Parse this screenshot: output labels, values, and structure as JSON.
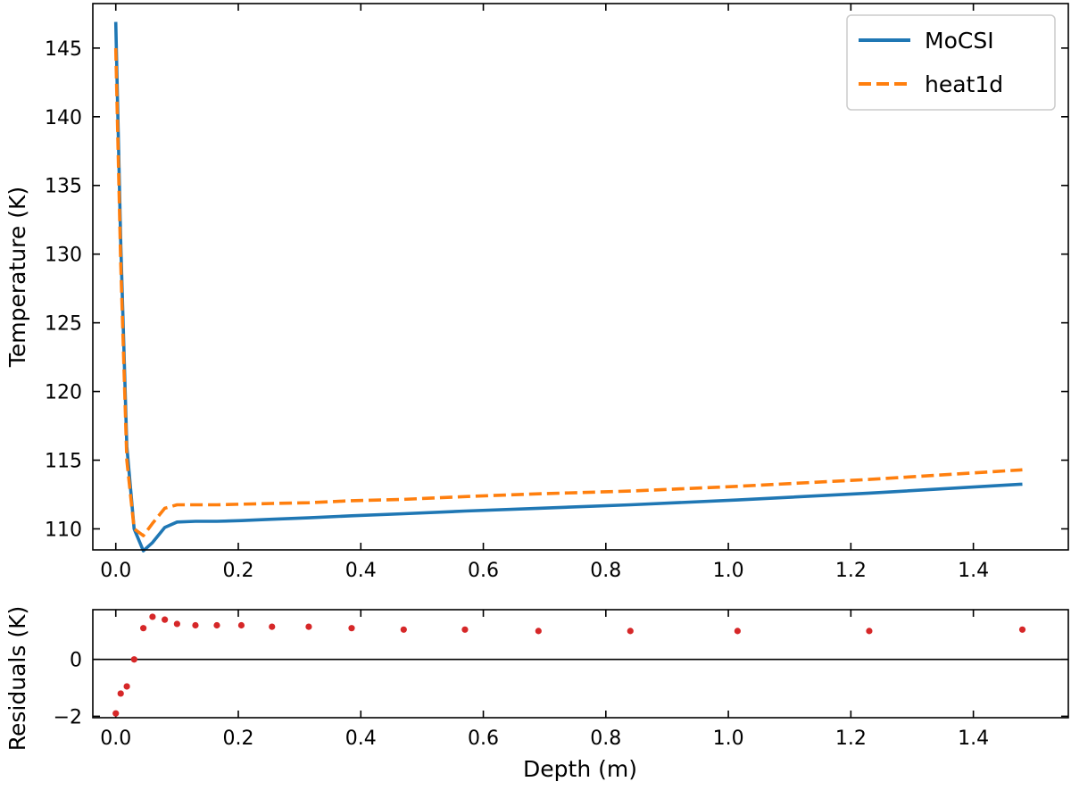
{
  "chart_data": [
    {
      "panel": "top",
      "type": "line",
      "xlabel": "",
      "ylabel": "Temperature (K)",
      "xlim": [
        -0.0375,
        1.555
      ],
      "ylim": [
        108.47,
        148.24
      ],
      "xticks": [
        0.0,
        0.2,
        0.4,
        0.6,
        0.8,
        1.0,
        1.2,
        1.4
      ],
      "xtick_labels": [
        "0.0",
        "0.2",
        "0.4",
        "0.6",
        "0.8",
        "1.0",
        "1.2",
        "1.4"
      ],
      "yticks": [
        110,
        115,
        120,
        125,
        130,
        135,
        140,
        145
      ],
      "ytick_labels": [
        "110",
        "115",
        "120",
        "125",
        "130",
        "135",
        "140",
        "145"
      ],
      "grid": false,
      "legend_position": "top-right",
      "series": [
        {
          "name": "MoCSI",
          "color": "#1f77b4",
          "dash": "solid",
          "x": [
            0.0,
            0.008,
            0.018,
            0.03,
            0.045,
            0.06,
            0.08,
            0.1,
            0.13,
            0.165,
            0.205,
            0.255,
            0.315,
            0.385,
            0.47,
            0.57,
            0.69,
            0.84,
            1.015,
            1.23,
            1.48
          ],
          "y": [
            146.9,
            131.0,
            116.0,
            110.0,
            108.4,
            109.0,
            110.1,
            110.5,
            110.55,
            110.55,
            110.6,
            110.7,
            110.8,
            110.95,
            111.1,
            111.3,
            111.5,
            111.75,
            112.1,
            112.6,
            113.25
          ]
        },
        {
          "name": "heat1d",
          "color": "#ff7f0e",
          "dash": "dashed",
          "x": [
            0.0,
            0.008,
            0.018,
            0.03,
            0.045,
            0.06,
            0.08,
            0.1,
            0.13,
            0.165,
            0.205,
            0.255,
            0.315,
            0.385,
            0.47,
            0.57,
            0.69,
            0.84,
            1.015,
            1.23,
            1.48
          ],
          "y": [
            145.0,
            129.5,
            115.0,
            110.0,
            109.5,
            110.4,
            111.5,
            111.75,
            111.75,
            111.75,
            111.8,
            111.85,
            111.9,
            112.05,
            112.15,
            112.35,
            112.55,
            112.75,
            113.1,
            113.6,
            114.3
          ]
        }
      ]
    },
    {
      "panel": "bottom",
      "type": "scatter",
      "xlabel": "Depth (m)",
      "ylabel": "Residuals (K)",
      "xlim": [
        -0.0375,
        1.555
      ],
      "ylim": [
        -2.05,
        1.75
      ],
      "xticks": [
        0.0,
        0.2,
        0.4,
        0.6,
        0.8,
        1.0,
        1.2,
        1.4
      ],
      "xtick_labels": [
        "0.0",
        "0.2",
        "0.4",
        "0.6",
        "0.8",
        "1.0",
        "1.2",
        "1.4"
      ],
      "yticks": [
        -2,
        0
      ],
      "ytick_labels": [
        "−2",
        "0"
      ],
      "zero_line": true,
      "grid": false,
      "series": [
        {
          "color": "#d62728",
          "x": [
            0.0,
            0.008,
            0.018,
            0.03,
            0.045,
            0.06,
            0.08,
            0.1,
            0.13,
            0.165,
            0.205,
            0.255,
            0.315,
            0.385,
            0.47,
            0.57,
            0.69,
            0.84,
            1.015,
            1.23,
            1.48
          ],
          "y": [
            -1.9,
            -1.2,
            -0.95,
            0.0,
            1.1,
            1.5,
            1.4,
            1.25,
            1.2,
            1.2,
            1.2,
            1.15,
            1.15,
            1.1,
            1.05,
            1.05,
            1.0,
            1.0,
            1.0,
            1.0,
            1.05
          ]
        }
      ]
    }
  ]
}
